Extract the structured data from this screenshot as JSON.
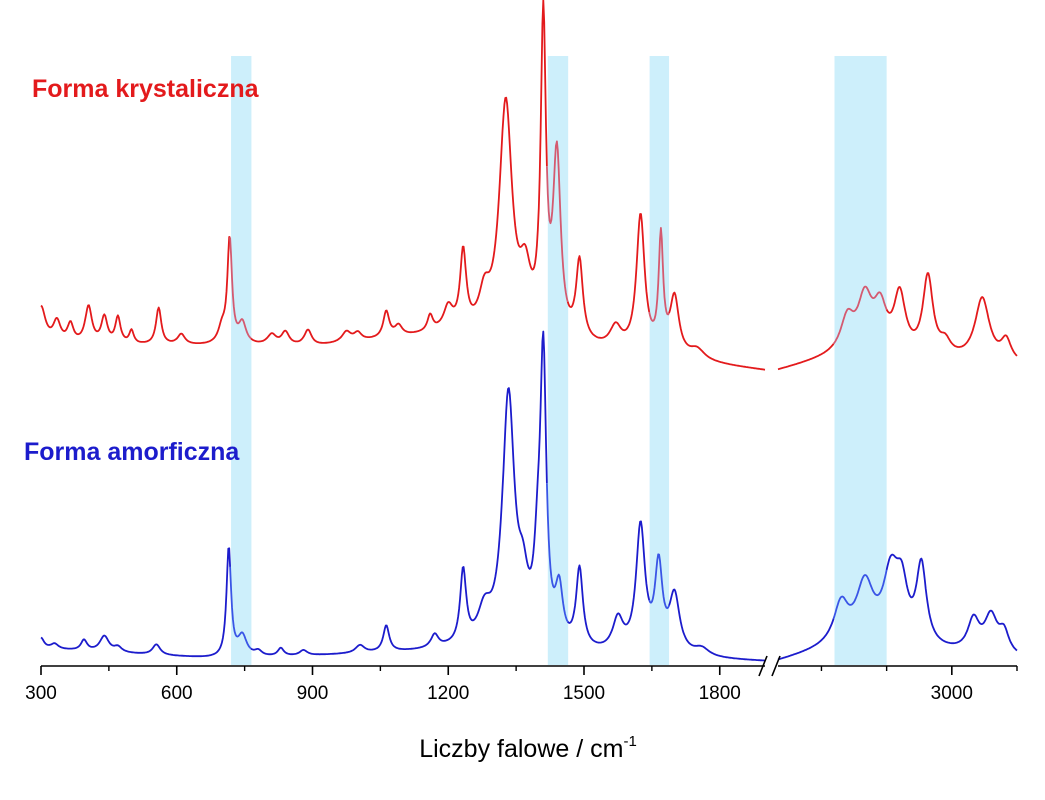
{
  "chart_data": {
    "type": "line",
    "xlabel": {
      "main": "Liczby falowe / cm",
      "sup": "-1"
    },
    "ylabel": "",
    "x_axis": {
      "segments": [
        {
          "from": 300,
          "to": 1900,
          "ticks": [
            300,
            600,
            900,
            1200,
            1500,
            1800
          ]
        },
        {
          "from": 2600,
          "to": 3150,
          "ticks": [
            3000
          ]
        }
      ],
      "break_between": [
        1900,
        2600
      ]
    },
    "grid": false,
    "highlight_bands": [
      [
        720,
        765
      ],
      [
        1420,
        1465
      ],
      [
        1645,
        1688
      ],
      [
        2730,
        2850
      ]
    ],
    "highlight_color": "#cdeffb",
    "series": [
      {
        "name": "Forma krystaliczna",
        "color": "#e31a1c",
        "highlight_color": "#d45a70",
        "baseline": 0.16,
        "background": [
          [
            300,
            0.1
          ],
          [
            900,
            0.09
          ],
          [
            1200,
            0.14
          ],
          [
            1900,
            0.0
          ],
          [
            2600,
            0.0
          ],
          [
            2750,
            0.06
          ],
          [
            3150,
            0.02
          ]
        ],
        "peaks": [
          [
            300,
            0.14,
            12
          ],
          [
            335,
            0.08,
            10
          ],
          [
            365,
            0.07,
            8
          ],
          [
            405,
            0.14,
            9
          ],
          [
            440,
            0.1,
            8
          ],
          [
            470,
            0.1,
            7
          ],
          [
            500,
            0.05,
            6
          ],
          [
            560,
            0.14,
            7
          ],
          [
            610,
            0.04,
            10
          ],
          [
            700,
            0.06,
            10
          ],
          [
            717,
            0.4,
            6
          ],
          [
            745,
            0.08,
            10
          ],
          [
            810,
            0.04,
            12
          ],
          [
            840,
            0.05,
            10
          ],
          [
            890,
            0.06,
            10
          ],
          [
            975,
            0.04,
            12
          ],
          [
            1000,
            0.03,
            10
          ],
          [
            1063,
            0.1,
            8
          ],
          [
            1090,
            0.04,
            10
          ],
          [
            1160,
            0.06,
            7
          ],
          [
            1200,
            0.08,
            12
          ],
          [
            1233,
            0.29,
            8
          ],
          [
            1280,
            0.12,
            14
          ],
          [
            1327,
            0.88,
            17
          ],
          [
            1370,
            0.2,
            15
          ],
          [
            1410,
            1.18,
            7
          ],
          [
            1440,
            0.68,
            10
          ],
          [
            1490,
            0.3,
            9
          ],
          [
            1570,
            0.08,
            15
          ],
          [
            1625,
            0.52,
            11
          ],
          [
            1670,
            0.43,
            6
          ],
          [
            1700,
            0.22,
            12
          ],
          [
            1750,
            0.04,
            20
          ],
          [
            2760,
            0.12,
            18
          ],
          [
            2800,
            0.2,
            20
          ],
          [
            2835,
            0.16,
            18
          ],
          [
            2880,
            0.22,
            16
          ],
          [
            2945,
            0.3,
            14
          ],
          [
            2985,
            0.05,
            15
          ],
          [
            3070,
            0.24,
            20
          ],
          [
            3125,
            0.08,
            14
          ]
        ]
      },
      {
        "name": "Forma amorficzna",
        "color": "#1c1ccc",
        "highlight_color": "#3a55e6",
        "baseline": 0.0,
        "background": [
          [
            300,
            0.05
          ],
          [
            700,
            0.01
          ],
          [
            1200,
            0.04
          ],
          [
            1900,
            0.0
          ],
          [
            2600,
            0.0
          ],
          [
            2750,
            0.06
          ],
          [
            3150,
            0.01
          ]
        ],
        "peaks": [
          [
            300,
            0.04,
            8
          ],
          [
            330,
            0.02,
            10
          ],
          [
            395,
            0.04,
            8
          ],
          [
            440,
            0.06,
            12
          ],
          [
            470,
            0.02,
            10
          ],
          [
            555,
            0.04,
            10
          ],
          [
            715,
            0.42,
            6
          ],
          [
            745,
            0.08,
            12
          ],
          [
            780,
            0.02,
            10
          ],
          [
            830,
            0.03,
            8
          ],
          [
            880,
            0.02,
            10
          ],
          [
            1005,
            0.03,
            12
          ],
          [
            1063,
            0.1,
            8
          ],
          [
            1170,
            0.05,
            10
          ],
          [
            1233,
            0.28,
            8
          ],
          [
            1280,
            0.12,
            18
          ],
          [
            1333,
            0.95,
            16
          ],
          [
            1365,
            0.18,
            14
          ],
          [
            1398,
            0.25,
            10
          ],
          [
            1410,
            1.05,
            8
          ],
          [
            1445,
            0.2,
            10
          ],
          [
            1490,
            0.3,
            9
          ],
          [
            1575,
            0.12,
            14
          ],
          [
            1625,
            0.48,
            12
          ],
          [
            1665,
            0.32,
            10
          ],
          [
            1700,
            0.22,
            14
          ],
          [
            1760,
            0.03,
            20
          ],
          [
            2745,
            0.14,
            20
          ],
          [
            2800,
            0.22,
            24
          ],
          [
            2860,
            0.26,
            22
          ],
          [
            2885,
            0.18,
            16
          ],
          [
            2930,
            0.3,
            14
          ],
          [
            3050,
            0.12,
            16
          ],
          [
            3090,
            0.14,
            18
          ],
          [
            3120,
            0.08,
            14
          ]
        ]
      }
    ]
  }
}
